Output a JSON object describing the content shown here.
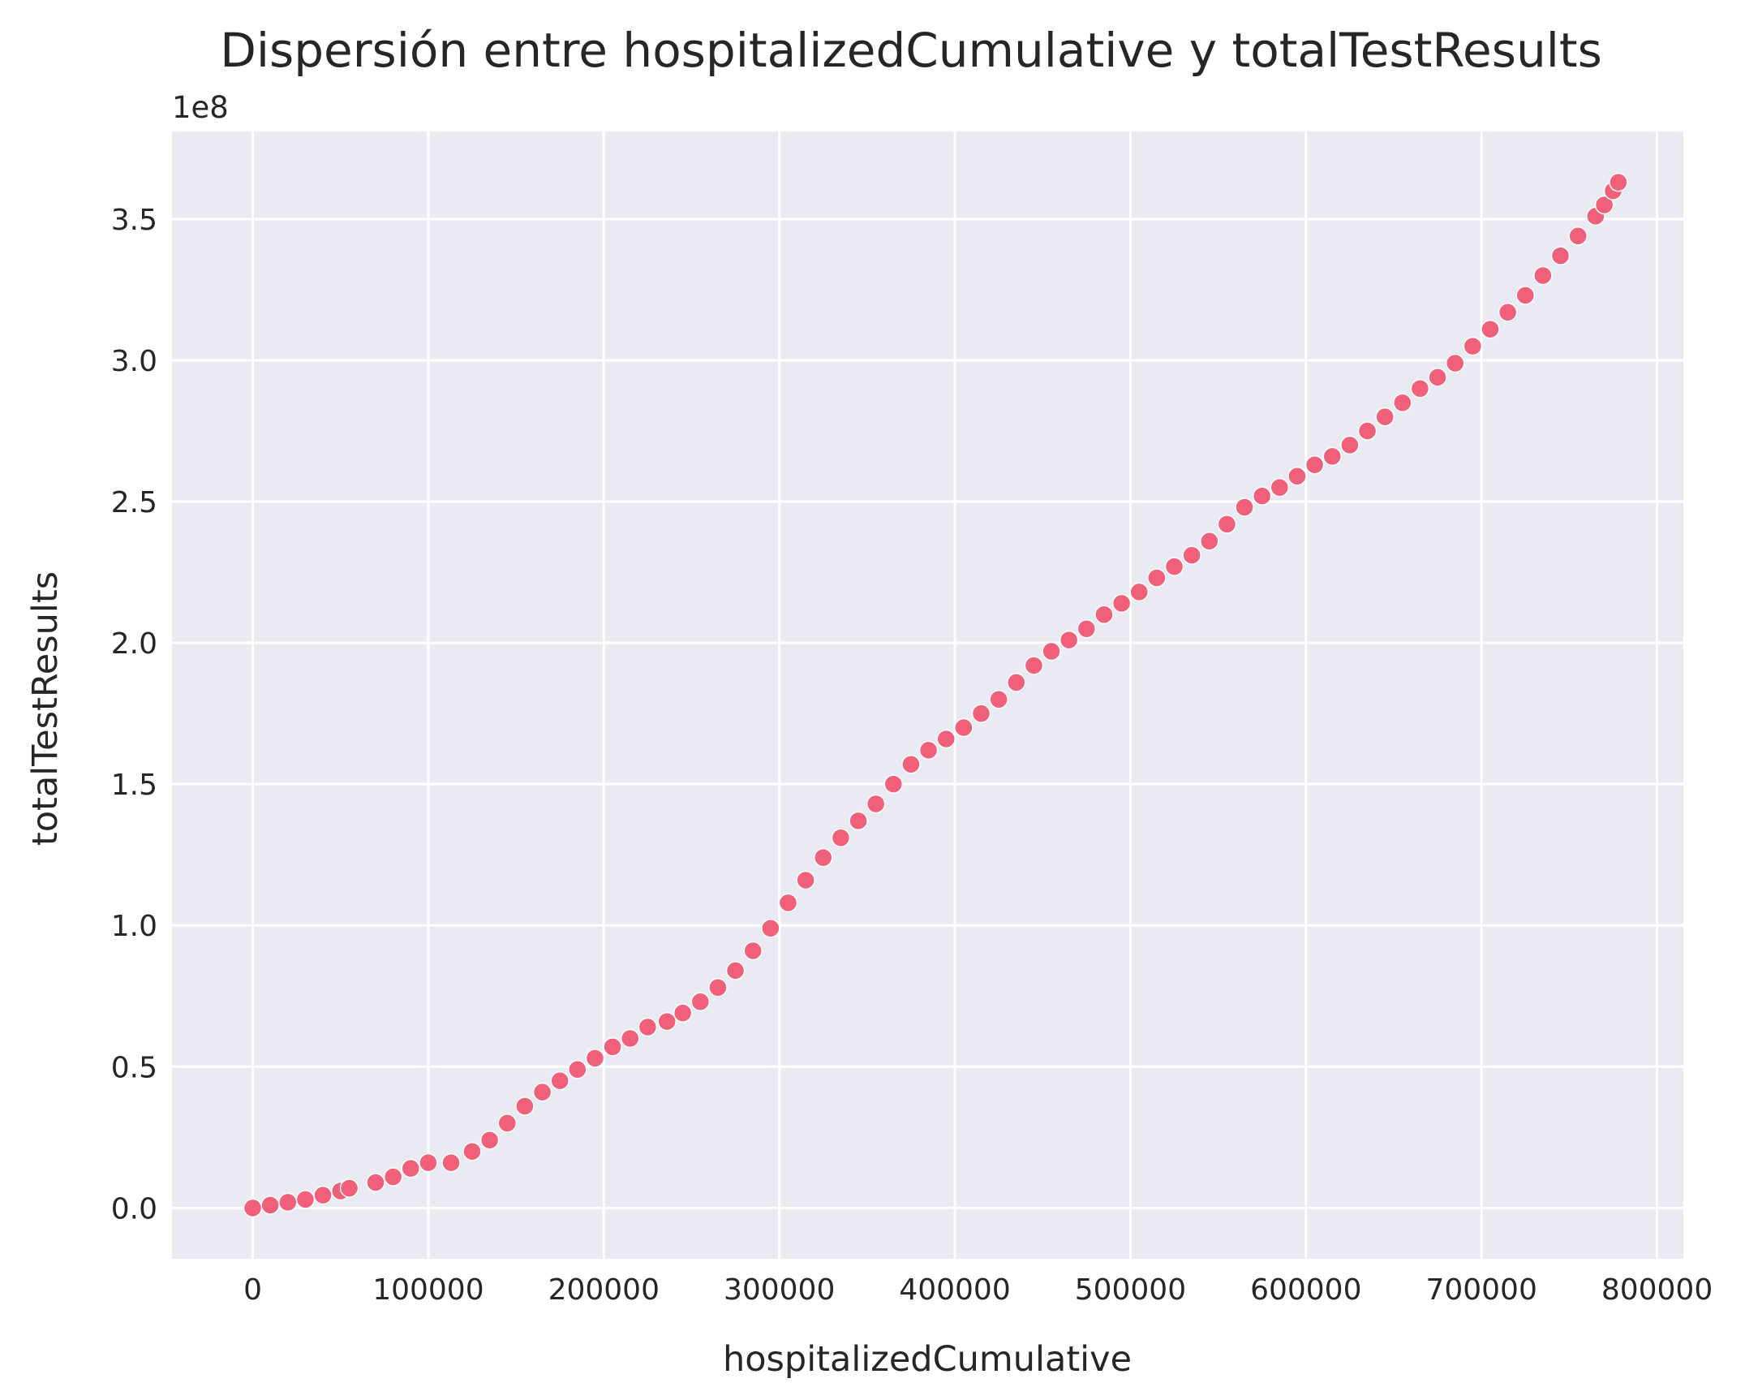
{
  "chart_data": {
    "type": "scatter",
    "title": "Dispersión entre hospitalizedCumulative y totalTestResults",
    "xlabel": "hospitalizedCumulative",
    "ylabel": "totalTestResults",
    "y_offset_label": "1e8",
    "xlim": [
      -46000,
      815000
    ],
    "ylim": [
      -0.18,
      3.81
    ],
    "y_unit_multiplier": 100000000,
    "x_ticks": [
      0,
      100000,
      200000,
      300000,
      400000,
      500000,
      600000,
      700000,
      800000
    ],
    "x_tick_labels": [
      "0",
      "100000",
      "200000",
      "300000",
      "400000",
      "500000",
      "600000",
      "700000",
      "800000"
    ],
    "y_ticks": [
      0.0,
      0.5,
      1.0,
      1.5,
      2.0,
      2.5,
      3.0,
      3.5
    ],
    "y_tick_labels": [
      "0.0",
      "0.5",
      "1.0",
      "1.5",
      "2.0",
      "2.5",
      "3.0",
      "3.5"
    ],
    "grid": true,
    "background": "#eaeaf2",
    "point_color": "#f0607a",
    "point_edge_color": "#ffffff",
    "series": [
      {
        "x": [
          0,
          10000,
          20000,
          30000,
          40000,
          50000,
          55000,
          70000,
          80000,
          90000,
          100000,
          113000,
          125000,
          135000,
          145000,
          155000,
          165000,
          175000,
          185000,
          195000,
          205000,
          215000,
          225000,
          236000,
          245000,
          255000,
          265000,
          275000,
          285000,
          295000,
          305000,
          315000,
          325000,
          335000,
          345000,
          355000,
          365000,
          375000,
          385000,
          395000,
          405000,
          415000,
          425000,
          435000,
          445000,
          455000,
          465000,
          475000,
          485000,
          495000,
          505000,
          515000,
          525000,
          535000,
          545000,
          555000,
          565000,
          575000,
          585000,
          595000,
          605000,
          615000,
          625000,
          635000,
          645000,
          655000,
          665000,
          675000,
          685000,
          695000,
          705000,
          715000,
          725000,
          735000,
          745000,
          755000,
          765000,
          770000,
          775000,
          778000
        ],
        "y": [
          0.0,
          0.01,
          0.02,
          0.03,
          0.045,
          0.06,
          0.07,
          0.09,
          0.11,
          0.14,
          0.16,
          0.16,
          0.2,
          0.24,
          0.3,
          0.36,
          0.41,
          0.45,
          0.49,
          0.53,
          0.57,
          0.6,
          0.64,
          0.66,
          0.69,
          0.73,
          0.78,
          0.84,
          0.91,
          0.99,
          1.08,
          1.16,
          1.24,
          1.31,
          1.37,
          1.43,
          1.5,
          1.57,
          1.62,
          1.66,
          1.7,
          1.75,
          1.8,
          1.86,
          1.92,
          1.97,
          2.01,
          2.05,
          2.1,
          2.14,
          2.18,
          2.23,
          2.27,
          2.31,
          2.36,
          2.42,
          2.48,
          2.52,
          2.55,
          2.59,
          2.63,
          2.66,
          2.7,
          2.75,
          2.8,
          2.85,
          2.9,
          2.94,
          2.99,
          3.05,
          3.11,
          3.17,
          3.23,
          3.3,
          3.37,
          3.44,
          3.51,
          3.55,
          3.6,
          3.63
        ]
      }
    ]
  }
}
